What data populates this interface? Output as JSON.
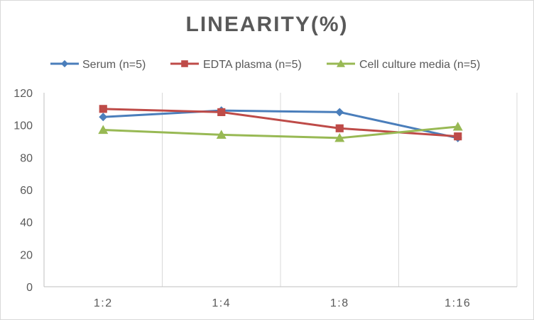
{
  "chart_data": {
    "type": "line",
    "title": "LINEARITY(%)",
    "categories": [
      "1:2",
      "1:4",
      "1:8",
      "1:16"
    ],
    "ylim": [
      0,
      120
    ],
    "yticks": [
      0,
      20,
      40,
      60,
      80,
      100,
      120
    ],
    "grid": "vertical",
    "legend_position": "top",
    "series": [
      {
        "name": "Serum (n=5)",
        "values": [
          105,
          109,
          108,
          92
        ],
        "color": "#4a7ebb",
        "marker": "diamond"
      },
      {
        "name": "EDTA plasma (n=5)",
        "values": [
          110,
          108,
          98,
          93
        ],
        "color": "#be4b48",
        "marker": "square"
      },
      {
        "name": "Cell culture media (n=5)",
        "values": [
          97,
          94,
          92,
          99
        ],
        "color": "#98b954",
        "marker": "triangle"
      }
    ]
  }
}
